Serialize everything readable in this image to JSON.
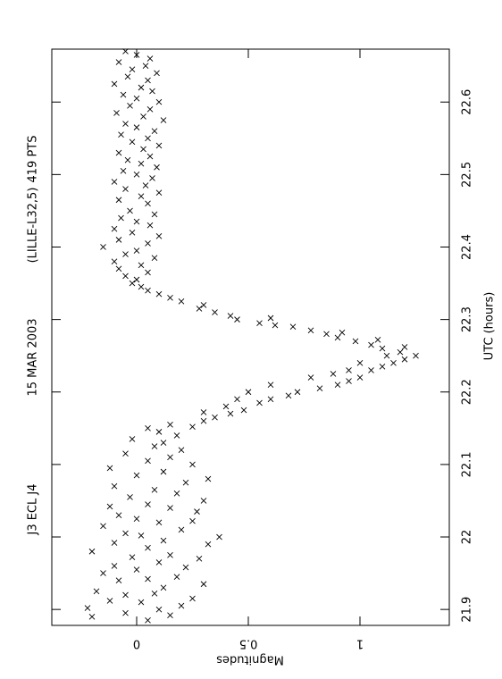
{
  "chart_data": {
    "type": "scatter",
    "title_parts": [
      "J3 ECL J4",
      "15 MAR 2003",
      "(LILLE-L32,5)",
      "419 PTS"
    ],
    "x_label": "UTC (hours)",
    "y_label": "Magnitudes",
    "xlim": [
      21.878,
      22.673
    ],
    "xticks": [
      21.9,
      22,
      22.1,
      22.2,
      22.3,
      22.4,
      22.5,
      22.6
    ],
    "ylim": [
      -0.38,
      1.4
    ],
    "yticks": [
      0,
      0.5,
      1
    ],
    "color": "#000000",
    "x": [
      21.885,
      21.89,
      21.892,
      21.895,
      21.9,
      21.902,
      21.905,
      21.91,
      21.912,
      21.915,
      21.92,
      21.922,
      21.925,
      21.93,
      21.935,
      21.94,
      21.942,
      21.945,
      21.95,
      21.955,
      21.958,
      21.96,
      21.965,
      21.97,
      21.972,
      21.975,
      21.98,
      21.985,
      21.99,
      21.992,
      21.995,
      22.0,
      22.002,
      22.005,
      22.01,
      22.015,
      22.02,
      22.022,
      22.025,
      22.03,
      22.035,
      22.04,
      22.042,
      22.045,
      22.05,
      22.055,
      22.06,
      22.065,
      22.07,
      22.075,
      22.08,
      22.085,
      22.09,
      22.095,
      22.1,
      22.105,
      22.11,
      22.115,
      22.12,
      22.125,
      22.13,
      22.135,
      22.14,
      22.145,
      22.15,
      22.152,
      22.155,
      22.16,
      22.165,
      22.17,
      22.172,
      22.175,
      22.18,
      22.185,
      22.19,
      22.19,
      22.195,
      22.2,
      22.2,
      22.205,
      22.21,
      22.21,
      22.215,
      22.22,
      22.22,
      22.225,
      22.23,
      22.23,
      22.235,
      22.24,
      22.24,
      22.245,
      22.25,
      22.25,
      22.255,
      22.26,
      22.262,
      22.265,
      22.27,
      22.272,
      22.275,
      22.28,
      22.282,
      22.285,
      22.29,
      22.292,
      22.295,
      22.3,
      22.302,
      22.305,
      22.31,
      22.315,
      22.32,
      22.325,
      22.33,
      22.335,
      22.34,
      22.345,
      22.35,
      22.355,
      22.36,
      22.365,
      22.37,
      22.375,
      22.38,
      22.385,
      22.39,
      22.395,
      22.4,
      22.405,
      22.41,
      22.415,
      22.42,
      22.425,
      22.43,
      22.435,
      22.44,
      22.445,
      22.45,
      22.46,
      22.465,
      22.47,
      22.475,
      22.48,
      22.485,
      22.49,
      22.495,
      22.5,
      22.505,
      22.51,
      22.515,
      22.52,
      22.525,
      22.53,
      22.535,
      22.54,
      22.545,
      22.55,
      22.555,
      22.56,
      22.565,
      22.57,
      22.575,
      22.58,
      22.585,
      22.59,
      22.595,
      22.6,
      22.605,
      22.61,
      22.615,
      22.62,
      22.625,
      22.63,
      22.635,
      22.64,
      22.645,
      22.65,
      22.655,
      22.66,
      22.665,
      22.67
    ],
    "values": [
      0.05,
      -0.2,
      0.15,
      -0.05,
      0.1,
      -0.22,
      0.2,
      0.02,
      -0.12,
      0.25,
      -0.05,
      0.08,
      -0.18,
      0.12,
      0.3,
      -0.08,
      0.05,
      0.18,
      -0.15,
      0.0,
      0.22,
      -0.1,
      0.1,
      0.28,
      -0.02,
      0.15,
      -0.2,
      0.05,
      0.32,
      -0.1,
      0.12,
      0.37,
      0.02,
      -0.05,
      0.2,
      -0.15,
      0.1,
      0.25,
      0.0,
      -0.08,
      0.27,
      0.15,
      -0.12,
      0.05,
      0.3,
      -0.03,
      0.18,
      0.08,
      -0.1,
      0.22,
      0.32,
      0.0,
      0.12,
      -0.12,
      0.25,
      0.05,
      0.15,
      -0.05,
      0.2,
      0.08,
      0.12,
      -0.02,
      0.18,
      0.1,
      0.05,
      0.25,
      0.15,
      0.3,
      0.35,
      0.42,
      0.3,
      0.48,
      0.4,
      0.55,
      0.6,
      0.45,
      0.68,
      0.5,
      0.72,
      0.82,
      0.6,
      0.9,
      0.95,
      0.78,
      1.0,
      0.88,
      1.05,
      0.95,
      1.1,
      1.0,
      1.15,
      1.2,
      1.12,
      1.25,
      1.18,
      1.1,
      1.2,
      1.05,
      0.98,
      1.08,
      0.9,
      0.85,
      0.92,
      0.78,
      0.7,
      0.62,
      0.55,
      0.45,
      0.6,
      0.42,
      0.35,
      0.28,
      0.3,
      0.2,
      0.15,
      0.1,
      0.05,
      0.02,
      -0.02,
      0.0,
      -0.05,
      0.05,
      -0.08,
      0.02,
      -0.1,
      0.08,
      -0.05,
      0.0,
      -0.15,
      0.05,
      -0.08,
      0.1,
      -0.02,
      -0.1,
      0.06,
      0.0,
      -0.07,
      0.08,
      -0.03,
      0.05,
      -0.08,
      0.02,
      0.1,
      -0.05,
      0.04,
      -0.1,
      0.07,
      0.0,
      -0.06,
      0.09,
      0.02,
      -0.04,
      0.06,
      -0.08,
      0.03,
      0.1,
      -0.02,
      0.05,
      -0.07,
      0.08,
      0.0,
      -0.05,
      0.12,
      0.03,
      -0.09,
      0.06,
      -0.03,
      0.1,
      0.0,
      -0.06,
      0.07,
      0.02,
      -0.1,
      0.05,
      -0.04,
      0.09,
      -0.02,
      0.04,
      -0.08,
      0.06,
      0.0,
      -0.05
    ]
  }
}
